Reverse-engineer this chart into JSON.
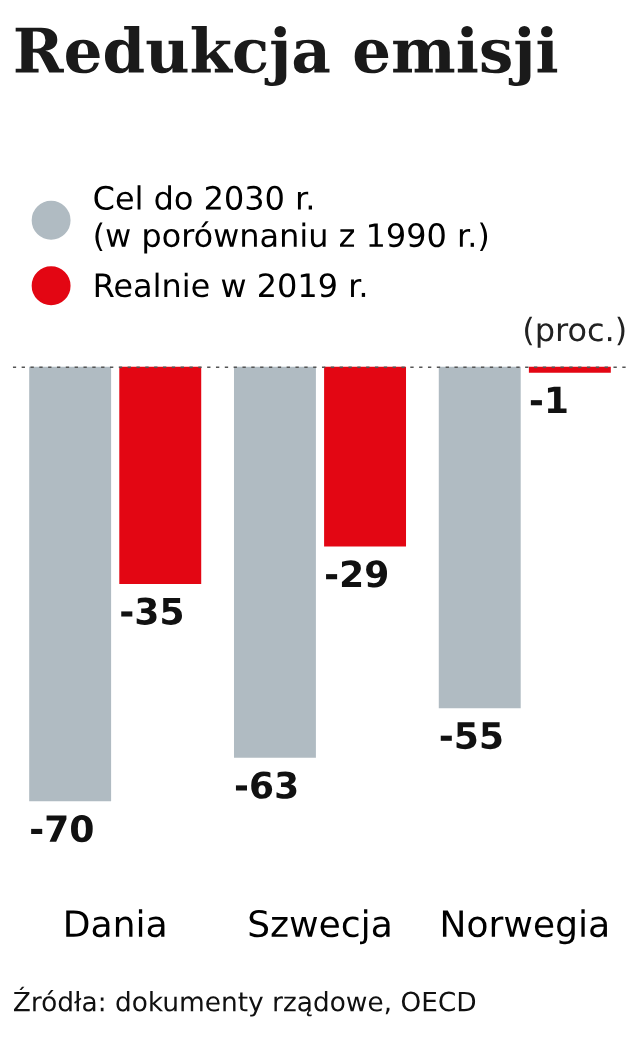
{
  "chart_data": {
    "type": "bar",
    "title": "Redukcja emisji",
    "categories": [
      "Dania",
      "Szwecja",
      "Norwegia"
    ],
    "series": [
      {
        "name": "Cel do 2030 r.\n(w porównaniu z 1990 r.)",
        "color": "#b0bbc2",
        "values": [
          -70,
          -63,
          -55
        ]
      },
      {
        "name": "Realnie w 2019 r.",
        "color": "#e30613",
        "values": [
          -35,
          -29,
          -1
        ]
      }
    ],
    "data_labels": true,
    "tick_labels": "x",
    "legend": "top left",
    "ref_lines": [
      {
        "axis": "y",
        "value": 0,
        "color": "#555555",
        "line_style": "dotted"
      }
    ],
    "annotations": [
      "(proc.)",
      "Źródła: dokumenty rządowe, OECD"
    ]
  }
}
